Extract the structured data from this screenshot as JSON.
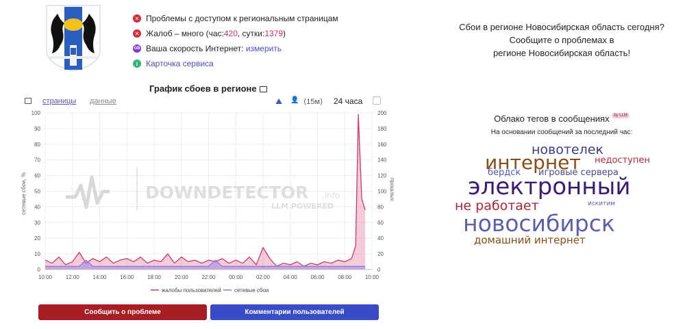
{
  "status": {
    "problems": "Проблемы с доступом к региональным страницам",
    "complaints_prefix": "Жалоб – много (час: ",
    "complaints_hour": "420",
    "complaints_mid": ", сутки: ",
    "complaints_day": "1379",
    "complaints_suffix": ")",
    "speed_prefix": "Ваша скорость Интернет: ",
    "speed_link": "измерить",
    "service_card": "Карточка сервиса"
  },
  "chart_title": "График сбоев в регионе",
  "toolbar": {
    "tab_pages": "страницы",
    "tab_data": "данные",
    "interval": "⟨15м⟩",
    "period": "24 часа"
  },
  "buttons": {
    "report": "Сообщить о проблеме",
    "comments": "Комментарии пользователей"
  },
  "header": {
    "line1": "Сбои в регионе Новосибирская область сегодня?",
    "line2": "Сообщите о проблемах в",
    "line3": "регионе Новосибирская область!"
  },
  "cloud": {
    "title": "Облако тегов в сообщениях",
    "badge": "by LLM",
    "subtitle": "На основании сообщений за последний час:",
    "words": [
      {
        "text": "новотелек",
        "color": "#3a3a8a"
      },
      {
        "text": "интернет",
        "color": "#8a4b14"
      },
      {
        "text": "недоступен",
        "color": "#b02a3a"
      },
      {
        "text": "бердск",
        "color": "#4a55b8"
      },
      {
        "text": "игровые сервера",
        "color": "#4a4a8a"
      },
      {
        "text": "электронный",
        "color": "#3a1a7a"
      },
      {
        "text": "не работает",
        "color": "#b0243a"
      },
      {
        "text": "искитим",
        "color": "#5a5ab8"
      },
      {
        "text": "новосибирск",
        "color": "#5a5fae"
      },
      {
        "text": "домашний интернет",
        "color": "#8a4b14"
      }
    ]
  },
  "watermark": {
    "main": "DOWNDETECTOR",
    "suffix": ".info",
    "sub": "LLM POWERED"
  },
  "chart_data": {
    "type": "area",
    "ylabel_left": "сетевые сбои, %",
    "ylabel_right": "прошлых",
    "ylim_left": [
      0,
      100
    ],
    "ylim_right": [
      0,
      200
    ],
    "yticks_left": [
      "0",
      "10",
      "20",
      "30",
      "40",
      "50",
      "60",
      "70",
      "80",
      "90",
      "100"
    ],
    "yticks_right": [
      "0",
      "20",
      "40",
      "60",
      "80",
      "100",
      "120",
      "140",
      "160",
      "180",
      "200"
    ],
    "xticks": [
      "10:00",
      "12:00",
      "14:00",
      "16:00",
      "18:00",
      "20:00",
      "22:00",
      "00:00",
      "02:00",
      "04:00",
      "06:00",
      "08:00",
      "10:00"
    ],
    "x_hours_from_start": [
      0,
      0.5,
      1,
      1.5,
      2,
      2.5,
      3,
      3.5,
      4,
      4.5,
      5,
      5.5,
      6,
      6.5,
      7,
      7.5,
      8,
      8.5,
      9,
      9.5,
      10,
      10.5,
      11,
      11.5,
      12,
      12.5,
      13,
      13.5,
      14,
      14.5,
      15,
      15.5,
      16,
      16.5,
      17,
      17.5,
      18,
      18.5,
      19,
      19.5,
      20,
      20.5,
      21,
      21.5,
      22,
      22.5,
      22.8,
      23,
      23.25,
      23.5
    ],
    "grid": true,
    "legend_position": "bottom",
    "series": [
      {
        "name": "жалобы пользователей",
        "color": "#d0376a",
        "values": [
          6,
          4,
          8,
          3,
          5,
          11,
          4,
          7,
          5,
          8,
          4,
          6,
          7,
          5,
          8,
          4,
          6,
          5,
          10,
          4,
          8,
          5,
          6,
          4,
          6,
          5,
          7,
          4,
          6,
          4,
          8,
          3,
          14,
          7,
          2,
          4,
          3,
          5,
          2,
          4,
          3,
          5,
          4,
          6,
          5,
          7,
          15,
          99,
          45,
          38
        ]
      },
      {
        "name": "сетевые сбои",
        "color": "#8a7ae0",
        "values": [
          2,
          2,
          2,
          2,
          2,
          2,
          6,
          2,
          2,
          2,
          2,
          2,
          2,
          2,
          2,
          2,
          2,
          2,
          2,
          2,
          2,
          2,
          2,
          2,
          2,
          6,
          2,
          2,
          2,
          2,
          2,
          2,
          2,
          2,
          2,
          2,
          2,
          2,
          2,
          2,
          2,
          2,
          2,
          2,
          2,
          2,
          2,
          2,
          2,
          2
        ]
      }
    ]
  }
}
